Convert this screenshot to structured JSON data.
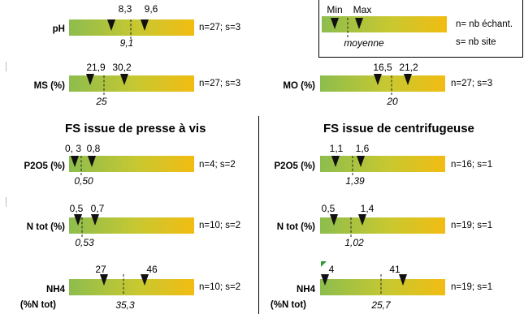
{
  "legend": {
    "min_label": "Min",
    "max_label": "Max",
    "avg_label": "moyenne",
    "n_label": "n= nb échant.",
    "s_label": "s= nb site"
  },
  "top": {
    "ph": {
      "label": "pH",
      "min": "8,3",
      "max": "9,6",
      "avg": "9,1",
      "ns": "n=27; s=3"
    },
    "ms": {
      "label": "MS (%)",
      "min": "21,9",
      "max": "30,2",
      "avg": "25",
      "ns": "n=27; s=3"
    },
    "mo": {
      "label": "MO (%)",
      "min": "16,5",
      "max": "21,2",
      "avg": "20",
      "ns": "n=27; s=3"
    }
  },
  "left": {
    "title": "FS issue de presse à vis",
    "p2o5": {
      "label": "P2O5 (%)",
      "min": "0, 3",
      "max": "0,8",
      "avg": "0,50",
      "ns": "n=4; s=2"
    },
    "ntot": {
      "label": "N tot (%)",
      "min": "0,5",
      "max": "0,7",
      "avg": "0,53",
      "ns": "n=10; s=2"
    },
    "nh4": {
      "label": "NH4",
      "label2": "(%N tot)",
      "min": "27",
      "max": "46",
      "avg": "35,3",
      "ns": "n=10; s=2"
    }
  },
  "right": {
    "title": "FS issue de centrifugeuse",
    "p2o5": {
      "label": "P2O5 (%)",
      "min": "1,1",
      "max": "1,6",
      "avg": "1,39",
      "ns": "n=16; s=1"
    },
    "ntot": {
      "label": "N tot (%)",
      "min": "0,5",
      "max": "1,4",
      "avg": "1,02",
      "ns": "n=19; s=1"
    },
    "nh4": {
      "label": "NH4",
      "label2": "(%N tot)",
      "min": "4",
      "max": "41",
      "avg": "25,7",
      "ns": "n=19; s=1"
    }
  },
  "colors": {
    "bar_start": "#8dbd4e",
    "bar_mid": "#c8c830",
    "bar_end": "#f2bc12"
  }
}
